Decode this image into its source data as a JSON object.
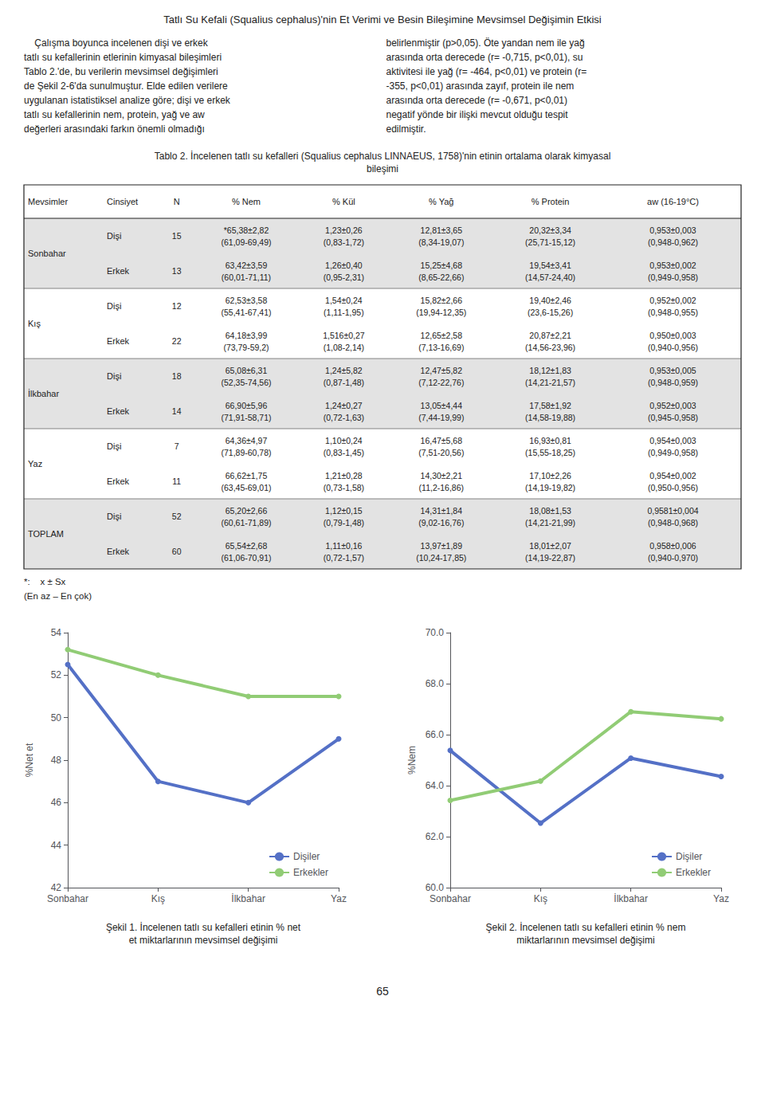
{
  "title": "Tatlı Su Kefali (Squalius cephalus)'nin Et Verimi ve Besin Bileşimine Mevsimsel Değişimin Etkisi",
  "body": [
    [
      "    Çalışma boyunca incelenen dişi ve erkek",
      "tatlı su kefallerinin etlerinin kimyasal bileşimleri",
      "Tablo 2.'de, bu verilerin mevsimsel değişimleri",
      "de Şekil 2-6'da sunulmuştur. Elde edilen verilere",
      "uygulanan istatistiksel analize göre; dişi ve erkek",
      "tatlı su kefallerinin nem, protein, yağ ve aw",
      "değerleri arasındaki farkın önemli olmadığı"
    ],
    [
      "belirlenmiştir (p>0,05). Öte yandan nem ile yağ",
      "arasında orta derecede (r= -0,715, p<0,01), su",
      "aktivitesi ile yağ (r= -464, p<0,01) ve protein (r=",
      "-355, p<0,01) arasında zayıf, protein ile nem",
      "arasında orta derecede (r= -0,671, p<0,01)",
      "negatif yönde bir ilişki mevcut olduğu tespit",
      "edilmiştir."
    ]
  ],
  "table": {
    "title": "Tablo 2. İncelenen tatlı su kefalleri (Squalius cephalus LINNAEUS, 1758)'nin etinin ortalama olarak kimyasal\nbileşimi",
    "headers": [
      "Mevsimler",
      "Cinsiyet",
      "N",
      "% Nem",
      "% Kül",
      "% Yağ",
      "% Protein",
      "aw (16-19°C)"
    ],
    "rows": [
      [
        "Sonbahar",
        "Dişi",
        "15",
        "*65,38±2,82\n(61,09-69,49)",
        "1,23±0,26\n(0,83-1,72)",
        "12,81±3,65\n(8,34-19,07)",
        "20,32±3,34\n(25,71-15,12)",
        "0,953±0,003\n(0,948-0,962)"
      ],
      [
        null,
        "Erkek",
        "13",
        "63,42±3,59\n(60,01-71,11)",
        "1,26±0,40\n(0,95-2,31)",
        "15,25±4,68\n(8,65-22,66)",
        "19,54±3,41\n(14,57-24,40)",
        "0,953±0,002\n(0,949-0,958)"
      ],
      [
        "Kış",
        "Dişi",
        "12",
        "62,53±3,58\n(55,41-67,41)",
        "1,54±0,24\n(1,11-1,95)",
        "15,82±2,66\n(19,94-12,35)",
        "19,40±2,46\n(23,6-15,26)",
        "0,952±0,002\n(0,948-0,955)"
      ],
      [
        null,
        "Erkek",
        "22",
        "64,18±3,99\n(73,79-59,2)",
        "1,516±0,27\n(1,08-2,14)",
        "12,65±2,58\n(7,13-16,69)",
        "20,87±2,21\n(14,56-23,96)",
        "0,950±0,003\n(0,940-0,956)"
      ],
      [
        "İlkbahar",
        "Dişi",
        "18",
        "65,08±6,31\n(52,35-74,56)",
        "1,24±5,82\n(0,87-1,48)",
        "12,47±5,82\n(7,12-22,76)",
        "18,12±1,83\n(14,21-21,57)",
        "0,953±0,005\n(0,948-0,959)"
      ],
      [
        null,
        "Erkek",
        "14",
        "66,90±5,96\n(71,91-58,71)",
        "1,24±0,27\n(0,72-1,63)",
        "13,05±4,44\n(7,44-19,99)",
        "17,58±1,92\n(14,58-19,88)",
        "0,952±0,003\n(0,945-0,958)"
      ],
      [
        "Yaz",
        "Dişi",
        "7",
        "64,36±4,97\n(71,89-60,78)",
        "1,10±0,24\n(0,83-1,45)",
        "16,47±5,68\n(7,51-20,56)",
        "16,93±0,81\n(15,55-18,25)",
        "0,954±0,003\n(0,949-0,958)"
      ],
      [
        null,
        "Erkek",
        "11",
        "66,62±1,75\n(63,45-69,01)",
        "1,21±0,28\n(0,73-1,58)",
        "14,30±2,21\n(11,2-16,86)",
        "17,10±2,26\n(14,19-19,82)",
        "0,954±0,002\n(0,950-0,956)"
      ],
      [
        "TOPLAM",
        "Dişi",
        "52",
        "65,20±2,66\n(60,61-71,89)",
        "1,12±0,15\n(0,79-1,48)",
        "14,31±1,84\n(9,02-16,76)",
        "18,08±1,53\n(14,21-21,99)",
        "0,9581±0,004\n(0,948-0,968)"
      ],
      [
        null,
        "Erkek",
        "60",
        "65,54±2,68\n(61,06-70,91)",
        "1,11±0,16\n(0,72-1,57)",
        "13,97±1,89\n(10,24-17,85)",
        "18,01±2,07\n(14,19-22,87)",
        "0,958±0,006\n(0,940-0,970)"
      ]
    ]
  },
  "footnotes": [
    "*:    x ± Sx",
    "(En az – En çok)"
  ],
  "chart_data": [
    {
      "type": "line",
      "title": "Şekil 1. İncelenen tatlı su kefalleri etinin % net\net miktarlarının mevsimsel değişimi",
      "categories": [
        "Sonbahar",
        "Kış",
        "İlkbahar",
        "Yaz"
      ],
      "ylabel": "%Net et",
      "ylim": [
        42,
        54
      ],
      "yticks": [
        42,
        44,
        46,
        48,
        50,
        52,
        54
      ],
      "series": [
        {
          "name": "Dişiler",
          "color": "#5470c6",
          "values": [
            52.5,
            47.0,
            46.0,
            49.0
          ]
        },
        {
          "name": "Erkekler",
          "color": "#91cc75",
          "values": [
            53.2,
            52.0,
            51.0,
            51.0
          ]
        }
      ],
      "legend": "lower right",
      "grid": false
    },
    {
      "type": "line",
      "title": "Şekil 2. İncelenen tatlı su kefalleri etinin % nem\nmiktarlarının mevsimsel değişimi",
      "categories": [
        "Sonbahar",
        "Kış",
        "İlkbahar",
        "Yaz"
      ],
      "ylabel": "%Nem",
      "ylim": [
        60.0,
        70.0
      ],
      "yticks": [
        {
          "value": 60.0,
          "label": "60.0"
        },
        {
          "value": 62.0,
          "label": "62.0"
        },
        {
          "value": 64.0,
          "label": "64.0"
        },
        {
          "value": 66.0,
          "label": "66.0"
        },
        {
          "value": 68.0,
          "label": "68.0"
        },
        {
          "value": 70.0,
          "label": "70.0"
        }
      ],
      "series": [
        {
          "name": "Dişiler",
          "color": "#5470c6",
          "values": [
            65.38,
            62.53,
            65.08,
            64.36
          ]
        },
        {
          "name": "Erkekler",
          "color": "#91cc75",
          "values": [
            63.42,
            64.18,
            66.9,
            66.62
          ]
        }
      ],
      "legend": "lower right",
      "grid": false
    }
  ],
  "page_number": "65"
}
